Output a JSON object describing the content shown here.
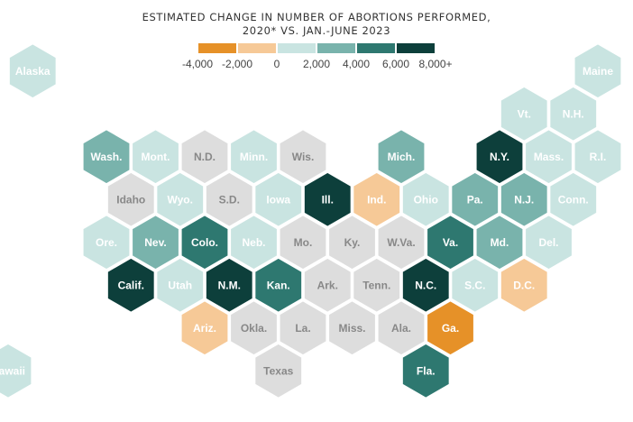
{
  "title": {
    "line1": "ESTIMATED CHANGE IN NUMBER OF ABORTIONS PERFORMED,",
    "line2": "2020* VS. JAN.-JUNE 2023"
  },
  "legend": {
    "colors": [
      "#e69128",
      "#f6c997",
      "#c9e4e1",
      "#79b3ac",
      "#2e7870",
      "#0d3f3b"
    ],
    "ticks": [
      "-4,000",
      "-2,000",
      "0",
      "2,000",
      "4,000",
      "6,000",
      "8,000+"
    ]
  },
  "palette": {
    "grey": "#dddddd",
    "text_light": "#ffffff",
    "text_dark": "#888888"
  },
  "chart_data": {
    "type": "hex-tile-map",
    "unit": "change in number of abortions performed",
    "states": [
      {
        "label": "Alaska",
        "bin": 2
      },
      {
        "label": "Maine",
        "bin": 2
      },
      {
        "label": "Vt.",
        "bin": 2
      },
      {
        "label": "N.H.",
        "bin": 2
      },
      {
        "label": "Wash.",
        "bin": 3
      },
      {
        "label": "Mont.",
        "bin": 2
      },
      {
        "label": "N.D.",
        "bin": -1
      },
      {
        "label": "Minn.",
        "bin": 2
      },
      {
        "label": "Wis.",
        "bin": -1
      },
      {
        "label": "Mich.",
        "bin": 3
      },
      {
        "label": "N.Y.",
        "bin": 5
      },
      {
        "label": "Mass.",
        "bin": 2
      },
      {
        "label": "R.I.",
        "bin": 2
      },
      {
        "label": "Idaho",
        "bin": -1
      },
      {
        "label": "Wyo.",
        "bin": 2
      },
      {
        "label": "S.D.",
        "bin": -1
      },
      {
        "label": "Iowa",
        "bin": 2
      },
      {
        "label": "Ill.",
        "bin": 5
      },
      {
        "label": "Ind.",
        "bin": 1
      },
      {
        "label": "Ohio",
        "bin": 2
      },
      {
        "label": "Pa.",
        "bin": 3
      },
      {
        "label": "N.J.",
        "bin": 3
      },
      {
        "label": "Conn.",
        "bin": 2
      },
      {
        "label": "Ore.",
        "bin": 2
      },
      {
        "label": "Nev.",
        "bin": 3
      },
      {
        "label": "Colo.",
        "bin": 4
      },
      {
        "label": "Neb.",
        "bin": 2
      },
      {
        "label": "Mo.",
        "bin": -1
      },
      {
        "label": "Ky.",
        "bin": -1
      },
      {
        "label": "W.Va.",
        "bin": -1
      },
      {
        "label": "Va.",
        "bin": 4
      },
      {
        "label": "Md.",
        "bin": 3
      },
      {
        "label": "Del.",
        "bin": 2
      },
      {
        "label": "Calif.",
        "bin": 5
      },
      {
        "label": "Utah",
        "bin": 2
      },
      {
        "label": "N.M.",
        "bin": 5
      },
      {
        "label": "Kan.",
        "bin": 4
      },
      {
        "label": "Ark.",
        "bin": -1
      },
      {
        "label": "Tenn.",
        "bin": -1
      },
      {
        "label": "N.C.",
        "bin": 5
      },
      {
        "label": "S.C.",
        "bin": 2
      },
      {
        "label": "D.C.",
        "bin": 1
      },
      {
        "label": "Ariz.",
        "bin": 1
      },
      {
        "label": "Okla.",
        "bin": -1
      },
      {
        "label": "La.",
        "bin": -1
      },
      {
        "label": "Miss.",
        "bin": -1
      },
      {
        "label": "Ala.",
        "bin": -1
      },
      {
        "label": "Ga.",
        "bin": 0
      },
      {
        "label": "Hawaii",
        "bin": 2
      },
      {
        "label": "Texas",
        "bin": -1
      },
      {
        "label": "Fla.",
        "bin": 4
      }
    ]
  }
}
